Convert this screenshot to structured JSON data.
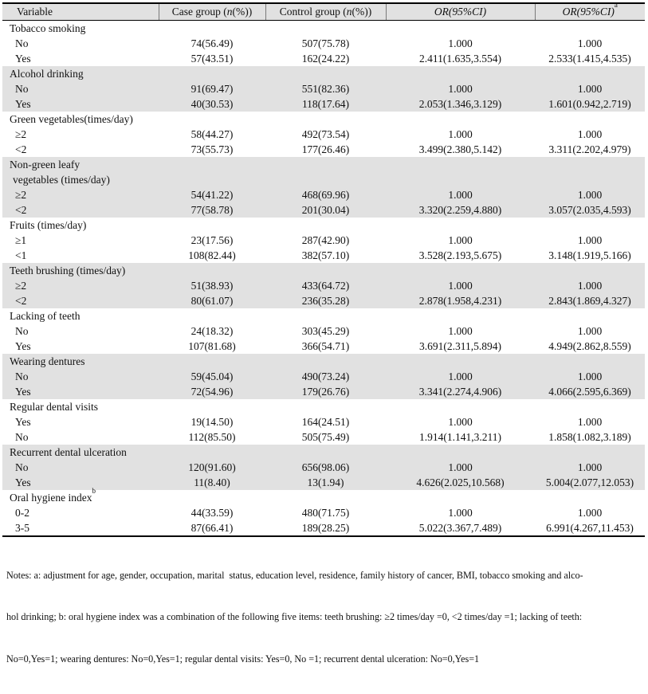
{
  "header": {
    "col1": "Variable",
    "col2_pre": "Case group (",
    "col2_italic": "n",
    "col2_post": "(%))",
    "col3_pre": "Control group (",
    "col3_italic": "n",
    "col3_post": "(%))",
    "col4": "OR(95%CI)",
    "col5": "OR(95%CI)",
    "col5_sup": "a"
  },
  "sections": [
    {
      "label": "Tobacco smoking",
      "shaded": false,
      "rows": [
        {
          "v": "No",
          "case": "74(56.49)",
          "control": "507(75.78)",
          "or": "1.000",
          "or_adj": "1.000"
        },
        {
          "v": "Yes",
          "case": "57(43.51)",
          "control": "162(24.22)",
          "or": "2.411(1.635,3.554)",
          "or_adj": "2.533(1.415,4.535)"
        }
      ]
    },
    {
      "label": "Alcohol drinking",
      "shaded": true,
      "rows": [
        {
          "v": "No",
          "case": "91(69.47)",
          "control": "551(82.36)",
          "or": "1.000",
          "or_adj": "1.000"
        },
        {
          "v": "Yes",
          "case": "40(30.53)",
          "control": "118(17.64)",
          "or": "2.053(1.346,3.129)",
          "or_adj": "1.601(0.942,2.719)"
        }
      ]
    },
    {
      "label": "Green vegetables(times/day)",
      "shaded": false,
      "rows": [
        {
          "v": "≥2",
          "case": "58(44.27)",
          "control": "492(73.54)",
          "or": "1.000",
          "or_adj": "1.000"
        },
        {
          "v": "<2",
          "case": "73(55.73)",
          "control": "177(26.46)",
          "or": "3.499(2.380,5.142)",
          "or_adj": "3.311(2.202,4.979)"
        }
      ]
    },
    {
      "label": "Non-green leafy",
      "label_line2": "vegetables (times/day)",
      "shaded": true,
      "rows": [
        {
          "v": "≥2",
          "case": "54(41.22)",
          "control": "468(69.96)",
          "or": "1.000",
          "or_adj": "1.000"
        },
        {
          "v": "<2",
          "case": "77(58.78)",
          "control": "201(30.04)",
          "or": "3.320(2.259,4.880)",
          "or_adj": "3.057(2.035,4.593)"
        }
      ]
    },
    {
      "label": "Fruits (times/day)",
      "shaded": false,
      "rows": [
        {
          "v": "≥1",
          "case": "23(17.56)",
          "control": "287(42.90)",
          "or": "1.000",
          "or_adj": "1.000"
        },
        {
          "v": "<1",
          "case": "108(82.44)",
          "control": "382(57.10)",
          "or": "3.528(2.193,5.675)",
          "or_adj": "3.148(1.919,5.166)"
        }
      ]
    },
    {
      "label": "Teeth brushing (times/day)",
      "shaded": true,
      "rows": [
        {
          "v": "≥2",
          "case": "51(38.93)",
          "control": "433(64.72)",
          "or": "1.000",
          "or_adj": "1.000"
        },
        {
          "v": "<2",
          "case": "80(61.07)",
          "control": "236(35.28)",
          "or": "2.878(1.958,4.231)",
          "or_adj": "2.843(1.869,4.327)"
        }
      ]
    },
    {
      "label": "Lacking of teeth",
      "shaded": false,
      "rows": [
        {
          "v": "No",
          "case": "24(18.32)",
          "control": "303(45.29)",
          "or": "1.000",
          "or_adj": "1.000"
        },
        {
          "v": "Yes",
          "case": "107(81.68)",
          "control": "366(54.71)",
          "or": "3.691(2.311,5.894)",
          "or_adj": "4.949(2.862,8.559)"
        }
      ]
    },
    {
      "label": "Wearing dentures",
      "shaded": true,
      "rows": [
        {
          "v": "No",
          "case": "59(45.04)",
          "control": "490(73.24)",
          "or": "1.000",
          "or_adj": "1.000"
        },
        {
          "v": "Yes",
          "case": "72(54.96)",
          "control": "179(26.76)",
          "or": "3.341(2.274,4.906)",
          "or_adj": "4.066(2.595,6.369)"
        }
      ]
    },
    {
      "label": "Regular dental visits",
      "shaded": false,
      "rows": [
        {
          "v": "Yes",
          "case": "19(14.50)",
          "control": "164(24.51)",
          "or": "1.000",
          "or_adj": "1.000"
        },
        {
          "v": "No",
          "case": "112(85.50)",
          "control": "505(75.49)",
          "or": "1.914(1.141,3.211)",
          "or_adj": "1.858(1.082,3.189)"
        }
      ]
    },
    {
      "label": "Recurrent dental ulceration",
      "shaded": true,
      "rows": [
        {
          "v": "No",
          "case": "120(91.60)",
          "control": "656(98.06)",
          "or": "1.000",
          "or_adj": "1.000"
        },
        {
          "v": "Yes",
          "case": "11(8.40)",
          "control": "13(1.94)",
          "or": "4.626(2.025,10.568)",
          "or_adj": "5.004(2.077,12.053)"
        }
      ]
    },
    {
      "label": "Oral hygiene index",
      "label_sup": "b",
      "shaded": false,
      "rows": [
        {
          "v": "0-2",
          "case": "44(33.59)",
          "control": "480(71.75)",
          "or": "1.000",
          "or_adj": "1.000"
        },
        {
          "v": "3-5",
          "case": "87(66.41)",
          "control": "189(28.25)",
          "or": "5.022(3.367,7.489)",
          "or_adj": "6.991(4.267,11.453)"
        }
      ]
    }
  ],
  "notes": {
    "line1": "Notes: a: adjustment for age, gender, occupation, marital  status, education level, residence, family history of cancer, BMI, tobacco smoking and alco-",
    "line2": "hol drinking; b: oral hygiene index was a combination of the following five items: teeth brushing: ≥2 times/day =0, <2 times/day =1; lacking of teeth:",
    "line3": "No=0,Yes=1; wearing dentures: No=0,Yes=1; regular dental visits: Yes=0, No =1; recurrent dental ulceration: No=0,Yes=1"
  },
  "colors": {
    "band": "#e1e1e1",
    "border": "#000000",
    "header_separator": "#7a7a7a",
    "text": "#111111"
  }
}
